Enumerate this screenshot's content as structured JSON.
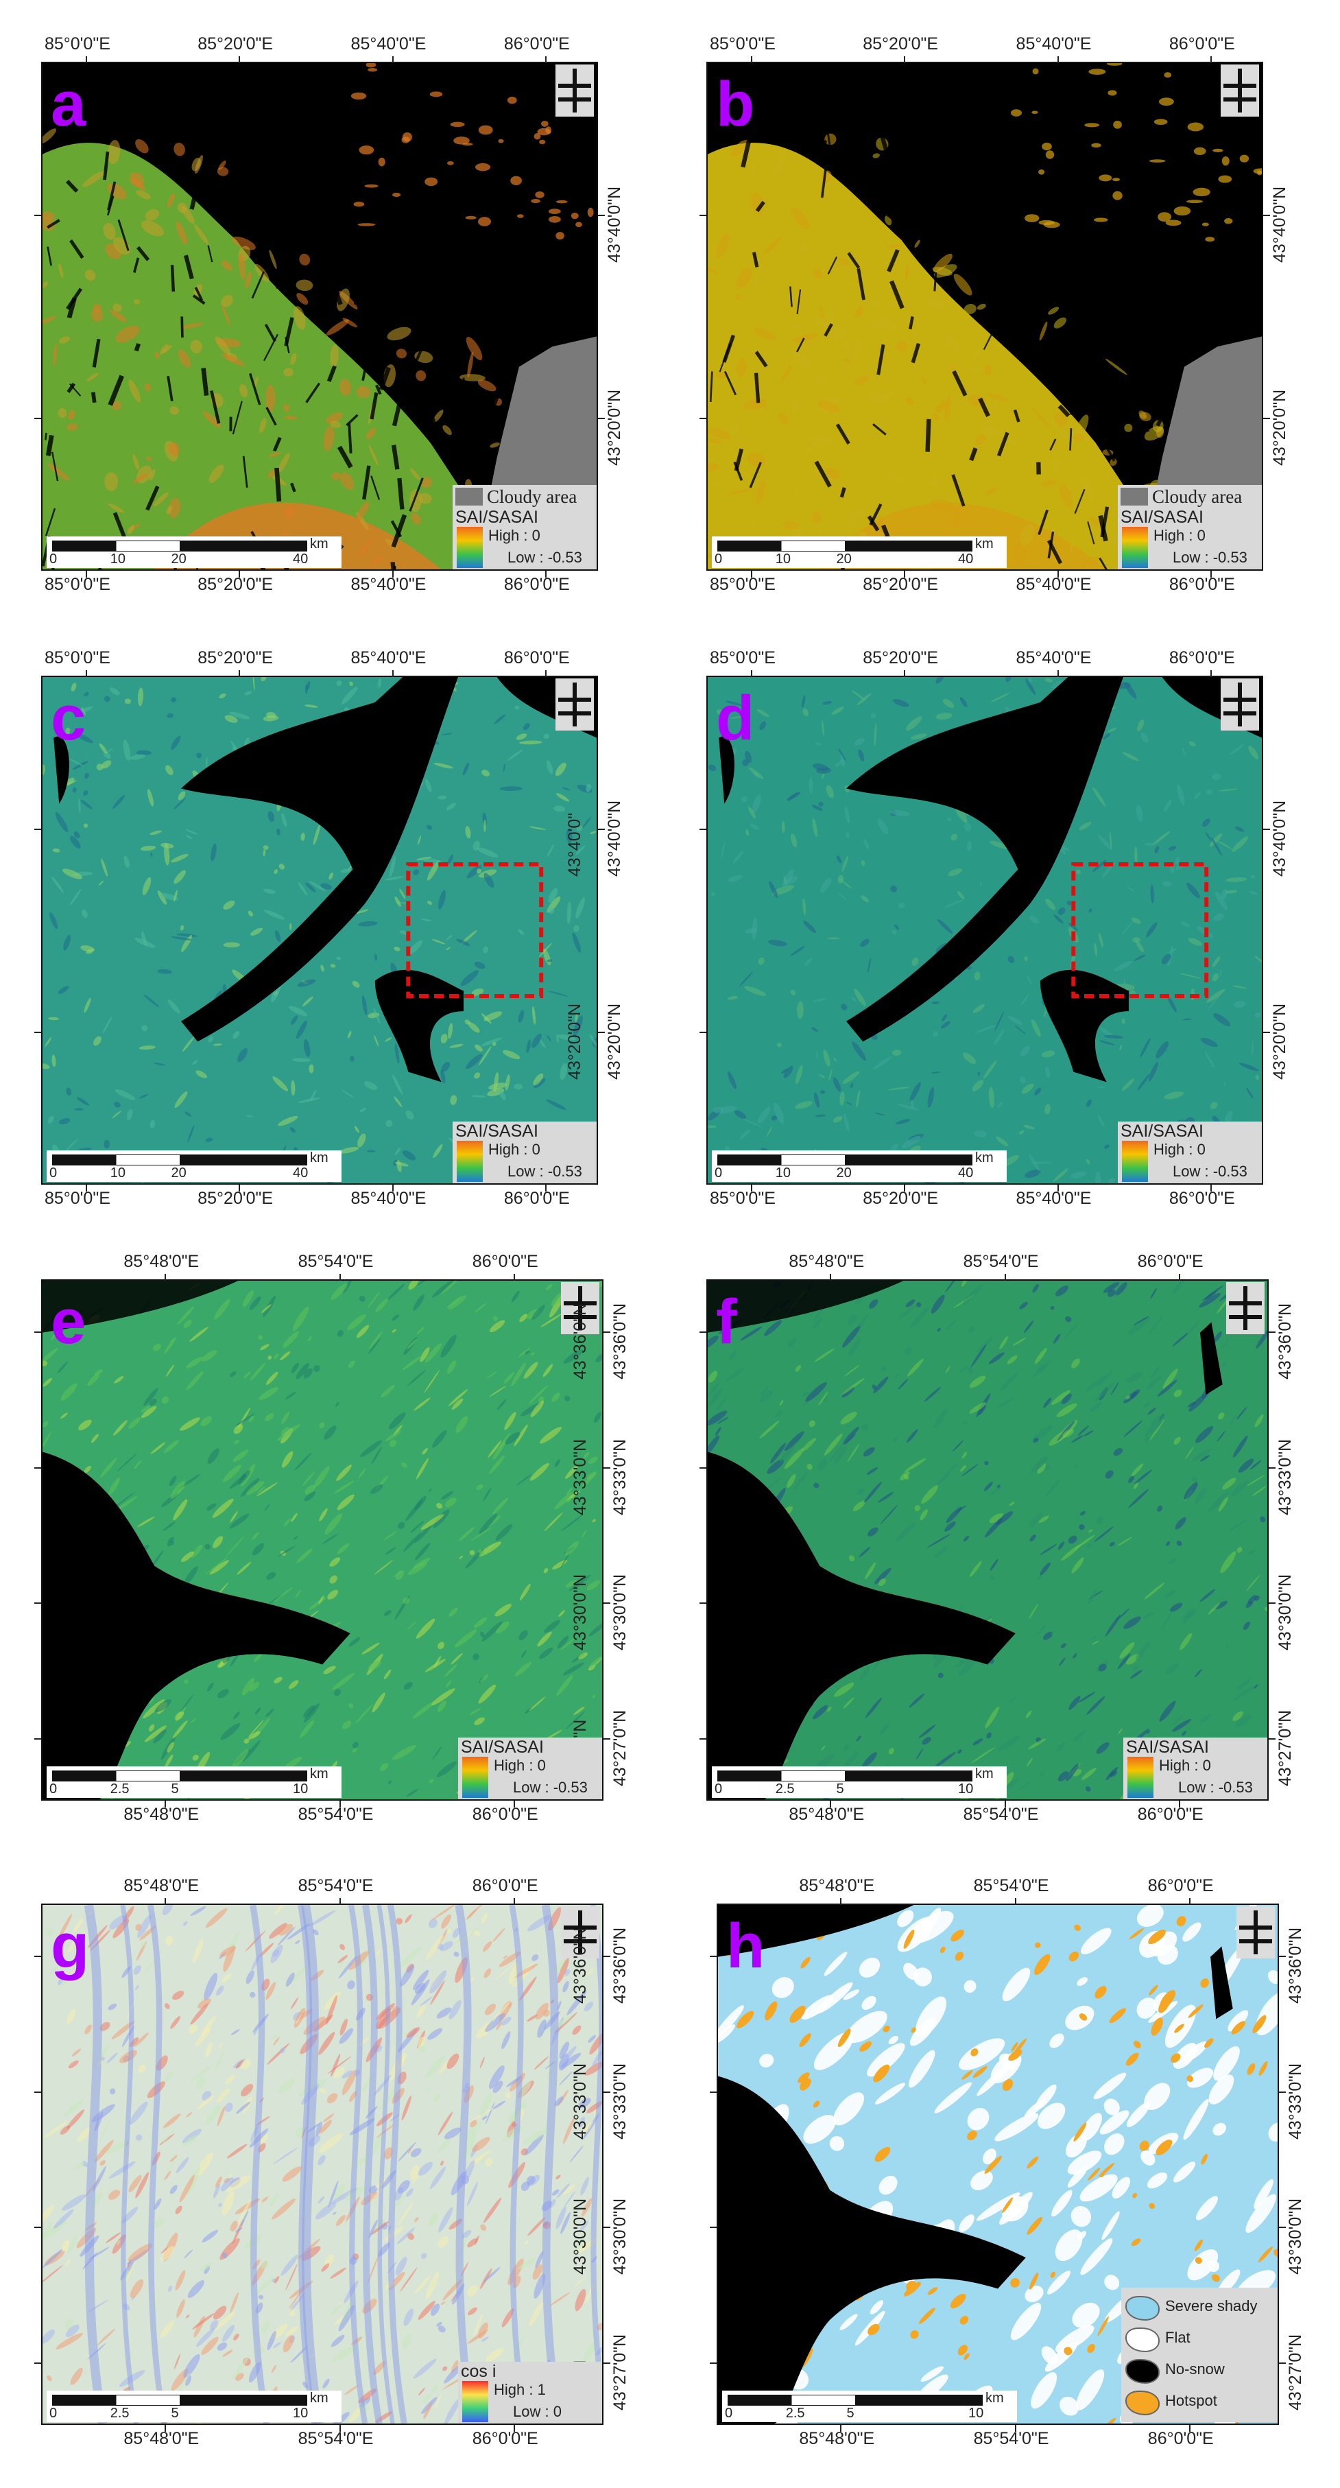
{
  "panels": [
    {
      "id": "a",
      "letter": "a",
      "style": "snowA",
      "bottom_ticks": [
        "85°0'0\"E",
        "85°20'0\"E",
        "85°40'0\"E",
        "86°0'0\"E"
      ],
      "top_ticks": [
        "85°0'0\"E",
        "85°20'0\"E",
        "85°40'0\"E",
        "86°0'0\"E"
      ],
      "right_ticks": [
        "43°40'0\"N",
        "43°20'0\"N"
      ],
      "inner_right_ticks": [],
      "legend": {
        "title": "SAI/SASAI",
        "high": "High : 0",
        "low": "Low : -0.53"
      },
      "cloud": "Cloudy area",
      "scale": {
        "unit": "km",
        "labels": [
          "0",
          "10",
          "20",
          "40"
        ]
      },
      "red_box": false
    },
    {
      "id": "b",
      "letter": "b",
      "style": "snowB",
      "bottom_ticks": [
        "85°0'0\"E",
        "85°20'0\"E",
        "85°40'0\"E",
        "86°0'0\"E"
      ],
      "top_ticks": [
        "85°0'0\"E",
        "85°20'0\"E",
        "85°40'0\"E",
        "86°0'0\"E"
      ],
      "right_ticks": [
        "43°40'0\"N",
        "43°20'0\"N"
      ],
      "inner_right_ticks": [],
      "legend": {
        "title": "SAI/SASAI",
        "high": "High : 0",
        "low": "Low : -0.53"
      },
      "cloud": "Cloudy area",
      "scale": {
        "unit": "km",
        "labels": [
          "0",
          "10",
          "20",
          "40"
        ]
      },
      "red_box": false
    },
    {
      "id": "c",
      "letter": "c",
      "style": "tealC",
      "bottom_ticks": [
        "85°0'0\"E",
        "85°20'0\"E",
        "85°40'0\"E",
        "86°0'0\"E"
      ],
      "top_ticks": [
        "85°0'0\"E",
        "85°20'0\"E",
        "85°40'0\"E",
        "86°0'0\"E"
      ],
      "right_ticks": [
        "43°40'0\"N",
        "43°20'0\"N"
      ],
      "inner_right_ticks": [
        "43°40'0\"",
        "43°20'0\"N"
      ],
      "legend": {
        "title": "SAI/SASAI",
        "high": "High : 0",
        "low": "Low : -0.53"
      },
      "cloud": "",
      "scale": {
        "unit": "km",
        "labels": [
          "0",
          "10",
          "20",
          "40"
        ]
      },
      "red_box": true
    },
    {
      "id": "d",
      "letter": "d",
      "style": "tealD",
      "bottom_ticks": [
        "85°0'0\"E",
        "85°20'0\"E",
        "85°40'0\"E",
        "86°0'0\"E"
      ],
      "top_ticks": [
        "85°0'0\"E",
        "85°20'0\"E",
        "85°40'0\"E",
        "86°0'0\"E"
      ],
      "right_ticks": [
        "43°40'0\"N",
        "43°20'0\"N"
      ],
      "inner_right_ticks": [],
      "legend": {
        "title": "SAI/SASAI",
        "high": "High : 0",
        "low": "Low : -0.53"
      },
      "cloud": "",
      "scale": {
        "unit": "km",
        "labels": [
          "0",
          "10",
          "20",
          "40"
        ]
      },
      "red_box": true
    },
    {
      "id": "e",
      "letter": "e",
      "style": "greenE",
      "bottom_ticks": [
        "85°48'0\"E",
        "85°54'0\"E",
        "86°0'0\"E"
      ],
      "top_ticks": [
        "85°48'0\"E",
        "85°54'0\"E",
        "86°0'0\"E"
      ],
      "right_ticks": [
        "43°36'0\"N",
        "43°33'0\"N",
        "43°30'0\"N",
        "43°27'0\"N"
      ],
      "inner_right_ticks": [
        "43°36'0\"N",
        "43°33'0\"N",
        "43°30'0\"N",
        "3°27'0\"N"
      ],
      "legend": {
        "title": "SAI/SASAI",
        "high": "High : 0",
        "low": "Low : -0.53"
      },
      "cloud": "",
      "scale": {
        "unit": "km",
        "labels": [
          "0",
          "2.5",
          "5",
          "10"
        ]
      },
      "red_box": false
    },
    {
      "id": "f",
      "letter": "f",
      "style": "greenF",
      "bottom_ticks": [
        "85°48'0\"E",
        "85°54'0\"E",
        "86°0'0\"E"
      ],
      "top_ticks": [
        "85°48'0\"E",
        "85°54'0\"E",
        "86°0'0\"E"
      ],
      "right_ticks": [
        "43°36'0\"N",
        "43°33'0\"N",
        "43°30'0\"N",
        "43°27'0\"N"
      ],
      "inner_right_ticks": [],
      "legend": {
        "title": "SAI/SASAI",
        "high": "High : 0",
        "low": "Low : -0.53"
      },
      "cloud": "",
      "scale": {
        "unit": "km",
        "labels": [
          "0",
          "2.5",
          "5",
          "10"
        ]
      },
      "red_box": false
    },
    {
      "id": "g",
      "letter": "g",
      "style": "cosG",
      "bottom_ticks": [
        "85°48'0\"E",
        "85°54'0\"E",
        "86°0'0\"E"
      ],
      "top_ticks": [
        "85°48'0\"E",
        "85°54'0\"E",
        "86°0'0\"E"
      ],
      "right_ticks": [
        "43°36'0\"N",
        "43°33'0\"N",
        "43°30'0\"N",
        "43°27'0\"N"
      ],
      "inner_right_ticks": [
        "43°36'0\"N",
        "43°33'0\"N",
        "43°30'0\"N",
        "27'0\"N"
      ],
      "legend": {
        "title": "cos i",
        "high": "High : 1",
        "low": "Low : 0"
      },
      "cloud": "",
      "scale": {
        "unit": "km",
        "labels": [
          "0",
          "2.5",
          "5",
          "10"
        ]
      },
      "red_box": false
    },
    {
      "id": "h",
      "letter": "h",
      "style": "classH",
      "bottom_ticks": [
        "85°48'0\"E",
        "85°54'0\"E",
        "86°0'0\"E"
      ],
      "top_ticks": [
        "85°48'0\"E",
        "85°54'0\"E",
        "86°0'0\"E"
      ],
      "right_ticks": [
        "43°36'0\"N",
        "43°33'0\"N",
        "43°30'0\"N",
        "43°27'0\"N"
      ],
      "inner_right_ticks": [],
      "legend": null,
      "cloud": "",
      "scale": {
        "unit": "km",
        "labels": [
          "0",
          "2.5",
          "5",
          "10"
        ]
      },
      "red_box": false,
      "class_legend": [
        {
          "label": "Severe shady",
          "color": "#8fd3ec"
        },
        {
          "label": "Flat",
          "color": "#ffffff"
        },
        {
          "label": "No-snow",
          "color": "#000000"
        },
        {
          "label": "Hotspot",
          "color": "#f5a623"
        }
      ]
    }
  ],
  "colors": {
    "snow_ramp": [
      "#f06a1e",
      "#f5c500",
      "#3cc24a",
      "#1e7ad8"
    ],
    "cos_ramp": [
      "#ff2a2a",
      "#ffe34a",
      "#3cd07a",
      "#3c5cff"
    ],
    "no_snow": "#000000",
    "cloud": "#7a7a7a",
    "red_box": "#e01010",
    "letter": "#b000ff"
  }
}
